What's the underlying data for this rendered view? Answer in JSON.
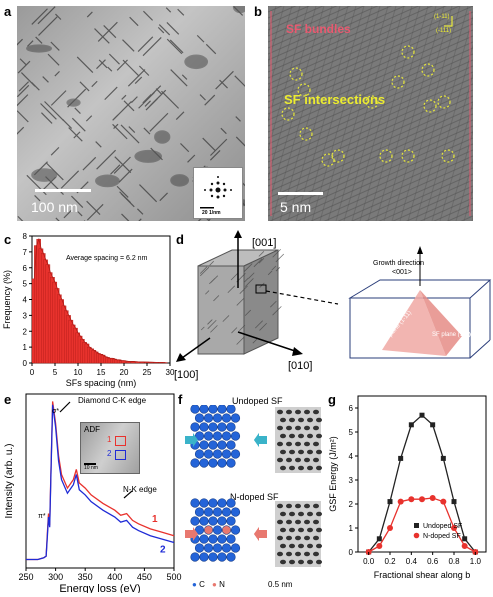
{
  "panels": {
    "a": {
      "label": "a",
      "scalebar": "100 nm",
      "inset_scalebar": "20 1/nm"
    },
    "b": {
      "label": "b",
      "title": "SF bundles",
      "annotation": "SF intersections",
      "scalebar": "5 nm",
      "dir1": "(1-11)",
      "dir2": "(-111)"
    },
    "c": {
      "label": "c",
      "annotation": "Average spacing = 6.2 nm"
    },
    "d": {
      "label": "d",
      "axis_001": "[001]",
      "axis_010": "[010]",
      "axis_100": "[100]",
      "growth_title": "Growth direction",
      "growth_dir": "<001>",
      "sf_plane_left": "SF plane (1-11)",
      "sf_plane_right": "SF plane (111)"
    },
    "e": {
      "label": "e",
      "edge_c": "Diamond C-K edge",
      "edge_n": "N-K edge",
      "inset": "ADF",
      "inset_scale": "10 nm",
      "pi_label": "π*",
      "sigma_label": "σ*",
      "marker1": "1",
      "marker2": "2"
    },
    "f": {
      "label": "f",
      "undoped": "Undoped SF",
      "ndoped": "N-doped SF",
      "legend_c": "C",
      "legend_n": "N",
      "scale": "0.5 nm"
    },
    "g": {
      "label": "g",
      "legend_undoped": "Undoped SF",
      "legend_ndoped": "N-doped SF"
    }
  },
  "chart_data": [
    {
      "type": "bar",
      "panel": "c",
      "xlabel": "SFs spacing (nm)",
      "ylabel": "Frequency (%)",
      "xlim": [
        0,
        30
      ],
      "ylim": [
        0,
        8
      ],
      "xticks": [
        0,
        5,
        10,
        15,
        20,
        25,
        30
      ],
      "yticks": [
        0,
        1,
        2,
        3,
        4,
        5,
        6,
        7,
        8
      ],
      "x": [
        0.5,
        1,
        1.5,
        2,
        2.5,
        3,
        3.5,
        4,
        4.5,
        5,
        5.5,
        6,
        6.5,
        7,
        7.5,
        8,
        8.5,
        9,
        9.5,
        10,
        10.5,
        11,
        11.5,
        12,
        12.5,
        13,
        13.5,
        14,
        14.5,
        15,
        15.5,
        16,
        16.5,
        17,
        17.5,
        18,
        18.5,
        19,
        19.5,
        20,
        21,
        22,
        23,
        24,
        25,
        26,
        27,
        28,
        29
      ],
      "values": [
        5.3,
        7.4,
        7.8,
        7.2,
        6.9,
        6.5,
        6.2,
        5.7,
        5.4,
        5.1,
        4.7,
        4.3,
        4.0,
        3.6,
        3.3,
        3.0,
        2.7,
        2.4,
        2.2,
        1.9,
        1.7,
        1.5,
        1.3,
        1.2,
        1.0,
        0.9,
        0.8,
        0.7,
        0.6,
        0.55,
        0.5,
        0.4,
        0.35,
        0.3,
        0.3,
        0.25,
        0.2,
        0.2,
        0.15,
        0.15,
        0.1,
        0.1,
        0.08,
        0.07,
        0.06,
        0.05,
        0.04,
        0.04,
        0.03
      ]
    },
    {
      "type": "line",
      "panel": "e",
      "xlabel": "Energy loss (eV)",
      "ylabel": "Intensity (arb. u.)",
      "xlim": [
        250,
        500
      ],
      "xticks": [
        250,
        300,
        350,
        400,
        450,
        500
      ],
      "series": [
        {
          "name": "1",
          "color": "#e8322d",
          "x": [
            250,
            270,
            280,
            284,
            286,
            288,
            290,
            292,
            295,
            300,
            305,
            310,
            320,
            330,
            335,
            340,
            350,
            360,
            380,
            400,
            410,
            420,
            430,
            440,
            460,
            480,
            500
          ],
          "y": [
            0.05,
            0.05,
            0.06,
            0.07,
            0.2,
            0.32,
            0.25,
            0.55,
            0.98,
            0.85,
            0.66,
            0.55,
            0.47,
            0.52,
            0.58,
            0.5,
            0.47,
            0.43,
            0.38,
            0.34,
            0.31,
            0.32,
            0.28,
            0.26,
            0.23,
            0.21,
            0.19
          ]
        },
        {
          "name": "2",
          "color": "#1f2bd6",
          "x": [
            250,
            270,
            280,
            284,
            286,
            288,
            290,
            292,
            295,
            300,
            305,
            310,
            320,
            330,
            335,
            340,
            350,
            360,
            380,
            400,
            410,
            420,
            430,
            440,
            460,
            480,
            500
          ],
          "y": [
            0.05,
            0.05,
            0.06,
            0.07,
            0.18,
            0.3,
            0.24,
            0.53,
            0.96,
            0.83,
            0.63,
            0.52,
            0.44,
            0.49,
            0.55,
            0.46,
            0.43,
            0.39,
            0.34,
            0.3,
            0.27,
            0.28,
            0.24,
            0.22,
            0.19,
            0.17,
            0.15
          ]
        }
      ]
    },
    {
      "type": "line",
      "panel": "g",
      "xlabel": "Fractional shear along b",
      "ylabel": "GSF Energy (J/m²)",
      "xlim": [
        -0.1,
        1.1
      ],
      "ylim": [
        0,
        6.5
      ],
      "xticks": [
        0.0,
        0.2,
        0.4,
        0.6,
        0.8,
        1.0
      ],
      "yticks": [
        0,
        1,
        2,
        3,
        4,
        5,
        6
      ],
      "series": [
        {
          "name": "Undoped SF",
          "color": "#222222",
          "marker": "square",
          "x": [
            0,
            0.1,
            0.2,
            0.3,
            0.4,
            0.5,
            0.6,
            0.7,
            0.8,
            0.9,
            1.0
          ],
          "y": [
            0,
            0.55,
            2.1,
            3.9,
            5.3,
            5.7,
            5.3,
            3.9,
            2.1,
            0.55,
            0
          ]
        },
        {
          "name": "N-doped SF",
          "color": "#e8322d",
          "marker": "circle",
          "x": [
            0,
            0.1,
            0.2,
            0.3,
            0.4,
            0.5,
            0.6,
            0.7,
            0.8,
            0.9,
            1.0
          ],
          "y": [
            0,
            0.25,
            1.0,
            2.1,
            2.2,
            2.2,
            2.25,
            2.1,
            1.0,
            0.25,
            0
          ]
        }
      ]
    }
  ]
}
